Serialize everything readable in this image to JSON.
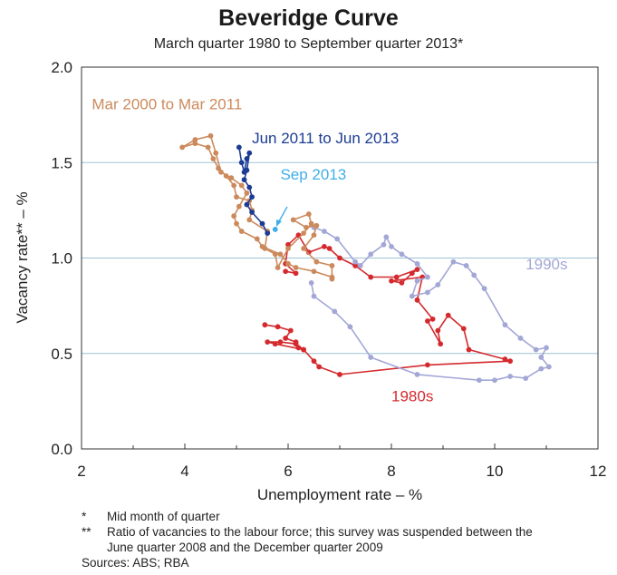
{
  "title": "Beveridge Curve",
  "subtitle": "March quarter 1980 to September quarter 2013*",
  "notes": [
    {
      "mark": "*",
      "text": "Mid month of quarter"
    },
    {
      "mark": "**",
      "text": "Ratio of vacancies to the labour force; this survey was suspended between the June quarter 2008 and the December quarter 2009"
    }
  ],
  "sources": "Sources: ABS; RBA",
  "chart_data": {
    "type": "line",
    "title": "Beveridge Curve",
    "xlabel": "Unemployment rate – %",
    "ylabel": "Vacancy rate** – %",
    "xlim": [
      2,
      12
    ],
    "ylim": [
      0,
      2
    ],
    "xticks": [
      "2",
      "4",
      "6",
      "8",
      "10",
      "12"
    ],
    "yticks": [
      "0.0",
      "0.5",
      "1.0",
      "1.5",
      "2.0"
    ],
    "grid": "horizontal",
    "series": [
      {
        "name": "1980s",
        "color": "#d42a2e",
        "label": {
          "text": "1980s",
          "at": [
            8.0,
            0.25
          ]
        },
        "points": [
          [
            5.55,
            0.65
          ],
          [
            5.8,
            0.64
          ],
          [
            6.05,
            0.62
          ],
          [
            5.95,
            0.58
          ],
          [
            6.15,
            0.56
          ],
          [
            6.2,
            0.53
          ],
          [
            6.3,
            0.52
          ],
          [
            6.15,
            0.55
          ],
          [
            5.85,
            0.56
          ],
          [
            5.6,
            0.56
          ],
          [
            5.75,
            0.55
          ],
          [
            6.3,
            0.52
          ],
          [
            6.5,
            0.46
          ],
          [
            6.6,
            0.43
          ],
          [
            7.0,
            0.39
          ],
          [
            8.7,
            0.44
          ],
          [
            10.3,
            0.46
          ],
          [
            10.2,
            0.47
          ],
          [
            9.5,
            0.52
          ],
          [
            9.4,
            0.63
          ],
          [
            9.1,
            0.7
          ],
          [
            8.9,
            0.62
          ],
          [
            8.95,
            0.55
          ],
          [
            8.7,
            0.67
          ],
          [
            8.8,
            0.68
          ],
          [
            8.5,
            0.78
          ],
          [
            8.6,
            0.9
          ],
          [
            8.0,
            0.88
          ],
          [
            8.2,
            0.87
          ],
          [
            8.4,
            0.92
          ],
          [
            8.5,
            0.94
          ],
          [
            8.1,
            0.9
          ],
          [
            7.6,
            0.9
          ],
          [
            7.3,
            0.96
          ],
          [
            7.0,
            1.0
          ],
          [
            6.8,
            1.05
          ],
          [
            6.7,
            1.06
          ],
          [
            6.4,
            1.03
          ],
          [
            6.2,
            1.12
          ],
          [
            6.0,
            1.07
          ],
          [
            5.95,
            0.97
          ],
          [
            6.15,
            0.92
          ],
          [
            5.95,
            0.93
          ]
        ]
      },
      {
        "name": "1990s",
        "color": "#a3a7d6",
        "label": {
          "text": "1990s",
          "at": [
            10.6,
            0.94
          ]
        },
        "points": [
          [
            6.5,
            1.16
          ],
          [
            6.7,
            1.14
          ],
          [
            6.95,
            1.1
          ],
          [
            7.3,
            0.98
          ],
          [
            7.4,
            0.96
          ],
          [
            7.6,
            1.02
          ],
          [
            7.85,
            1.07
          ],
          [
            7.9,
            1.11
          ],
          [
            8.0,
            1.06
          ],
          [
            8.2,
            1.02
          ],
          [
            8.5,
            0.97
          ],
          [
            8.7,
            0.9
          ],
          [
            8.5,
            0.88
          ],
          [
            8.4,
            0.8
          ],
          [
            8.7,
            0.82
          ],
          [
            8.9,
            0.86
          ],
          [
            9.2,
            0.98
          ],
          [
            9.45,
            0.96
          ],
          [
            9.6,
            0.91
          ],
          [
            9.8,
            0.84
          ],
          [
            10.2,
            0.65
          ],
          [
            10.5,
            0.58
          ],
          [
            10.8,
            0.52
          ],
          [
            11.0,
            0.53
          ],
          [
            10.9,
            0.48
          ],
          [
            11.05,
            0.43
          ],
          [
            10.9,
            0.42
          ],
          [
            10.6,
            0.37
          ],
          [
            10.3,
            0.38
          ],
          [
            10.0,
            0.36
          ],
          [
            9.7,
            0.36
          ],
          [
            8.5,
            0.39
          ],
          [
            7.6,
            0.48
          ],
          [
            7.2,
            0.64
          ],
          [
            6.9,
            0.72
          ],
          [
            6.5,
            0.8
          ],
          [
            6.45,
            0.87
          ]
        ]
      },
      {
        "name": "Mar 2000 to Mar 2011",
        "color": "#cc8a5c",
        "label": {
          "text": "Mar 2000 to Mar 2011",
          "at": [
            2.2,
            1.78
          ]
        },
        "points": [
          [
            6.85,
            0.89
          ],
          [
            6.85,
            0.96
          ],
          [
            6.55,
            0.98
          ],
          [
            6.3,
            1.05
          ],
          [
            6.5,
            1.12
          ],
          [
            6.55,
            1.17
          ],
          [
            6.35,
            1.16
          ],
          [
            6.1,
            1.2
          ],
          [
            6.4,
            1.23
          ],
          [
            6.45,
            1.18
          ],
          [
            6.3,
            1.13
          ],
          [
            6.0,
            1.05
          ],
          [
            5.8,
            0.95
          ],
          [
            5.75,
            1.02
          ],
          [
            5.55,
            1.05
          ],
          [
            5.6,
            1.14
          ],
          [
            5.25,
            1.2
          ],
          [
            5.3,
            1.25
          ],
          [
            5.25,
            1.3
          ],
          [
            5.0,
            1.32
          ],
          [
            4.95,
            1.38
          ],
          [
            4.8,
            1.43
          ],
          [
            4.65,
            1.47
          ],
          [
            4.55,
            1.52
          ],
          [
            4.45,
            1.58
          ],
          [
            4.2,
            1.6
          ],
          [
            3.95,
            1.58
          ],
          [
            4.2,
            1.62
          ],
          [
            4.5,
            1.64
          ],
          [
            4.6,
            1.55
          ],
          [
            4.7,
            1.45
          ],
          [
            4.9,
            1.42
          ],
          [
            5.1,
            1.38
          ],
          [
            5.2,
            1.34
          ],
          [
            5.05,
            1.27
          ],
          [
            4.95,
            1.22
          ],
          [
            5.0,
            1.18
          ],
          [
            5.1,
            1.14
          ],
          [
            5.4,
            1.1
          ],
          [
            5.5,
            1.06
          ],
          [
            5.85,
            1.02
          ],
          [
            6.0,
            0.97
          ],
          [
            6.15,
            0.95
          ],
          [
            6.5,
            0.93
          ],
          [
            6.85,
            0.9
          ]
        ]
      },
      {
        "name": "Jun 2011 to Jun 2013",
        "color": "#1c3c94",
        "label": {
          "text": "Jun 2011 to Jun 2013",
          "at": [
            5.3,
            1.6
          ]
        },
        "points": [
          [
            5.05,
            1.58
          ],
          [
            5.1,
            1.5
          ],
          [
            5.15,
            1.45
          ],
          [
            5.2,
            1.52
          ],
          [
            5.25,
            1.55
          ],
          [
            5.2,
            1.46
          ],
          [
            5.15,
            1.41
          ],
          [
            5.25,
            1.37
          ],
          [
            5.3,
            1.32
          ],
          [
            5.2,
            1.28
          ],
          [
            5.3,
            1.24
          ],
          [
            5.5,
            1.18
          ],
          [
            5.6,
            1.13
          ]
        ]
      },
      {
        "name": "Sep 2013",
        "color": "#3dafe8",
        "label": {
          "text": "Sep 2013",
          "at": [
            5.85,
            1.41
          ]
        },
        "points": [
          [
            5.75,
            1.15
          ]
        ]
      }
    ]
  }
}
